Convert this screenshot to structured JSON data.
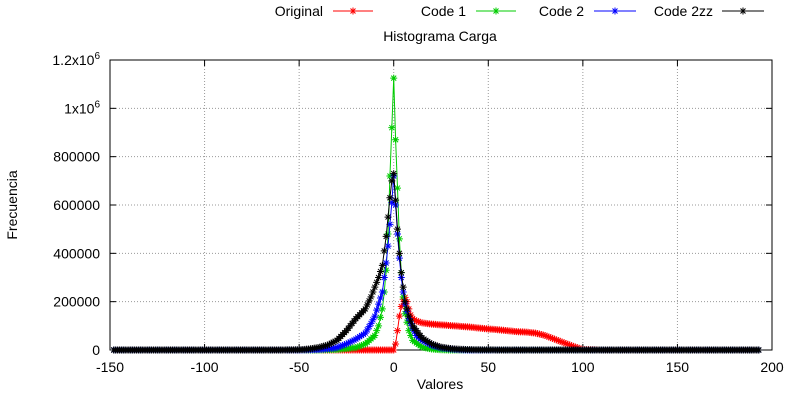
{
  "chart_data": {
    "type": "line",
    "title": "Histograma Carga",
    "xlabel": "Valores",
    "ylabel": "Frecuencia",
    "xlim": [
      -150,
      200
    ],
    "ylim": [
      0,
      1200000
    ],
    "grid": true,
    "legend_position": "top",
    "x_ticks": [
      -150,
      -100,
      -50,
      0,
      50,
      100,
      150,
      200
    ],
    "y_ticks": [
      {
        "value": 0,
        "base": "0",
        "exp": ""
      },
      {
        "value": 200000,
        "base": "200000",
        "exp": ""
      },
      {
        "value": 400000,
        "base": "400000",
        "exp": ""
      },
      {
        "value": 600000,
        "base": "600000",
        "exp": ""
      },
      {
        "value": 800000,
        "base": "800000",
        "exp": ""
      },
      {
        "value": 1000000,
        "base": "1x10",
        "exp": "6"
      },
      {
        "value": 1200000,
        "base": "1.2x10",
        "exp": "6"
      }
    ],
    "series": [
      {
        "name": "Original",
        "color": "#ff0000",
        "x": [
          -148,
          -140,
          -130,
          -120,
          -110,
          -100,
          -90,
          -80,
          -70,
          -60,
          -50,
          -40,
          -30,
          -20,
          -10,
          -5,
          -3,
          -2,
          -1,
          0,
          1,
          2,
          3,
          4,
          5,
          6,
          7,
          8,
          9,
          10,
          12,
          15,
          20,
          25,
          30,
          35,
          40,
          45,
          50,
          55,
          60,
          65,
          70,
          75,
          80,
          85,
          90,
          95,
          100,
          110,
          120,
          130,
          140,
          150,
          160,
          170,
          180,
          190,
          193
        ],
        "y": [
          0,
          0,
          0,
          0,
          0,
          0,
          0,
          0,
          0,
          0,
          0,
          0,
          0,
          0,
          0,
          0,
          0,
          0,
          0,
          0,
          25000,
          80000,
          140000,
          180000,
          210000,
          218000,
          200000,
          170000,
          145000,
          130000,
          120000,
          112000,
          107000,
          104000,
          101000,
          98000,
          95000,
          91000,
          87000,
          84000,
          80000,
          76000,
          74000,
          70000,
          60000,
          45000,
          30000,
          15000,
          2000,
          0,
          0,
          0,
          0,
          0,
          0,
          0,
          0,
          0,
          0
        ]
      },
      {
        "name": "Code 1",
        "color": "#00cc00",
        "x": [
          -148,
          -140,
          -130,
          -120,
          -110,
          -100,
          -90,
          -80,
          -70,
          -60,
          -50,
          -40,
          -30,
          -20,
          -15,
          -10,
          -8,
          -6,
          -5,
          -4,
          -3,
          -2,
          -1,
          0,
          1,
          2,
          3,
          4,
          5,
          6,
          8,
          10,
          15,
          20,
          25,
          30,
          40,
          50,
          60,
          70,
          80,
          90,
          100,
          110,
          120,
          130,
          140,
          150,
          160,
          170,
          180,
          190,
          193
        ],
        "y": [
          0,
          0,
          0,
          0,
          0,
          0,
          0,
          0,
          0,
          0,
          0,
          0,
          2000,
          10000,
          25000,
          60000,
          100000,
          170000,
          240000,
          330000,
          480000,
          720000,
          920000,
          1125000,
          870000,
          670000,
          460000,
          320000,
          220000,
          150000,
          80000,
          40000,
          12000,
          4000,
          1000,
          0,
          0,
          0,
          0,
          0,
          0,
          0,
          0,
          0,
          0,
          0,
          0,
          0,
          0,
          0,
          0,
          0,
          0
        ]
      },
      {
        "name": "Code 2",
        "color": "#0000ff",
        "x": [
          -148,
          -140,
          -130,
          -120,
          -110,
          -100,
          -90,
          -80,
          -70,
          -60,
          -50,
          -40,
          -35,
          -30,
          -25,
          -20,
          -15,
          -12,
          -10,
          -8,
          -6,
          -5,
          -4,
          -3,
          -2,
          -1,
          0,
          1,
          2,
          3,
          4,
          5,
          6,
          8,
          10,
          12,
          15,
          20,
          25,
          30,
          35,
          40,
          50,
          60,
          70,
          80,
          90,
          100,
          110,
          120,
          130,
          140,
          150,
          160,
          170,
          180,
          190,
          193
        ],
        "y": [
          0,
          0,
          0,
          0,
          0,
          0,
          0,
          0,
          0,
          0,
          0,
          2000,
          5000,
          10000,
          25000,
          45000,
          70000,
          110000,
          140000,
          190000,
          240000,
          300000,
          360000,
          430000,
          520000,
          610000,
          720000,
          600000,
          480000,
          380000,
          300000,
          240000,
          190000,
          130000,
          90000,
          60000,
          40000,
          20000,
          9000,
          4000,
          1000,
          0,
          0,
          0,
          0,
          0,
          0,
          0,
          0,
          0,
          0,
          0,
          0,
          0,
          0,
          0,
          0,
          0
        ]
      },
      {
        "name": "Code 2zz",
        "color": "#000000",
        "x": [
          -148,
          -140,
          -130,
          -120,
          -110,
          -100,
          -90,
          -80,
          -70,
          -60,
          -50,
          -45,
          -40,
          -35,
          -30,
          -25,
          -20,
          -15,
          -12,
          -10,
          -8,
          -6,
          -5,
          -4,
          -3,
          -2,
          -1,
          0,
          1,
          2,
          3,
          4,
          5,
          6,
          8,
          10,
          12,
          15,
          20,
          25,
          30,
          35,
          40,
          45,
          50,
          60,
          70,
          80,
          90,
          100,
          110,
          120,
          130,
          140,
          150,
          160,
          170,
          180,
          190,
          193
        ],
        "y": [
          0,
          0,
          0,
          0,
          0,
          0,
          0,
          0,
          0,
          0,
          1000,
          4000,
          10000,
          20000,
          40000,
          80000,
          130000,
          170000,
          220000,
          260000,
          300000,
          350000,
          410000,
          470000,
          550000,
          630000,
          700000,
          730000,
          620000,
          500000,
          400000,
          320000,
          260000,
          200000,
          140000,
          100000,
          80000,
          50000,
          25000,
          12000,
          6000,
          3000,
          1500,
          800,
          400,
          0,
          0,
          0,
          0,
          0,
          0,
          0,
          0,
          0,
          0,
          0,
          0,
          0,
          0,
          0
        ]
      }
    ]
  }
}
